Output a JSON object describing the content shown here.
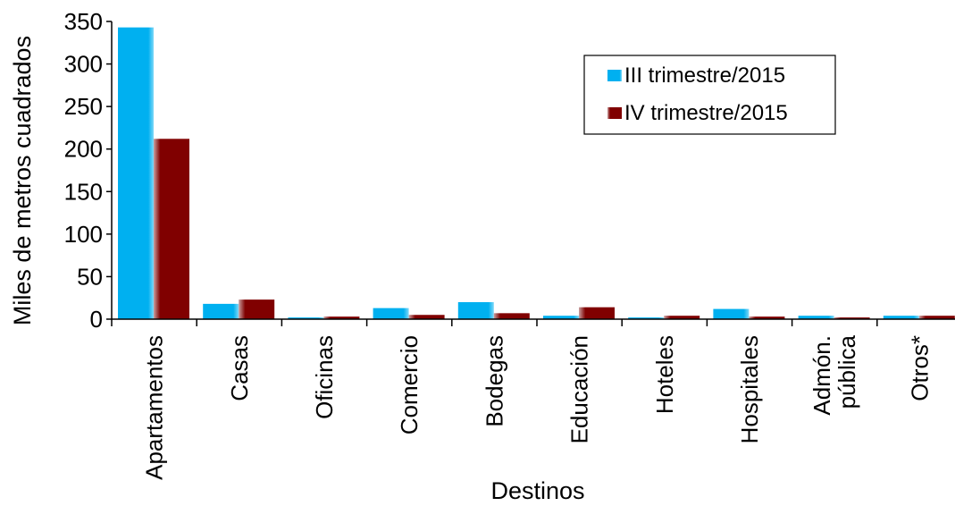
{
  "chart_data": {
    "type": "bar",
    "title": "",
    "xlabel": "Destinos",
    "ylabel": "Miles de metros cuadrados",
    "ylim": [
      0,
      350
    ],
    "yticks": [
      0,
      50,
      100,
      150,
      200,
      250,
      300,
      350
    ],
    "categories": [
      [
        "Apartamentos"
      ],
      [
        "Casas"
      ],
      [
        "Oficinas"
      ],
      [
        "Comercio"
      ],
      [
        "Bodegas"
      ],
      [
        "Educación"
      ],
      [
        "Hoteles"
      ],
      [
        "Hospitales"
      ],
      [
        "Admón.",
        "pública"
      ],
      [
        "Otros*"
      ]
    ],
    "series": [
      {
        "name": "III trimestre/2015",
        "color": "#00B0F0",
        "values": [
          343,
          18,
          2,
          13,
          20,
          4,
          2,
          12,
          4,
          4
        ]
      },
      {
        "name": "IV trimestre/2015",
        "color": "#800000",
        "values": [
          212,
          23,
          3,
          5,
          7,
          14,
          4,
          3,
          2,
          4
        ]
      }
    ],
    "legend_position": "top-right",
    "grid": false
  }
}
